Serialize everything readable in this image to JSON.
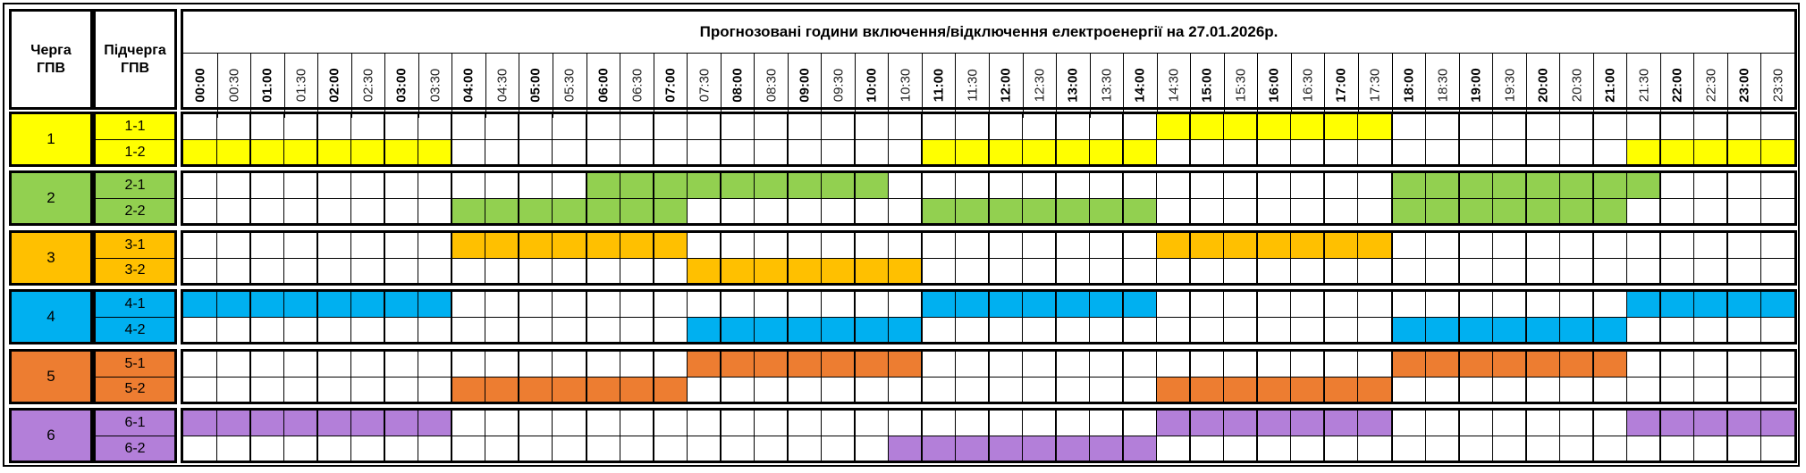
{
  "header": {
    "queue_label": "Черга ГПВ",
    "subqueue_label": "Підчерга ГПВ",
    "title": "Прогнозовані години включення/відключення електроенергії на 27.01.2026р."
  },
  "times": [
    "00:00",
    "00:30",
    "01:00",
    "01:30",
    "02:00",
    "02:30",
    "03:00",
    "03:30",
    "04:00",
    "04:30",
    "05:00",
    "05:30",
    "06:00",
    "06:30",
    "07:00",
    "07:30",
    "08:00",
    "08:30",
    "09:00",
    "09:30",
    "10:00",
    "10:30",
    "11:00",
    "11:30",
    "12:00",
    "12:30",
    "13:00",
    "13:30",
    "14:00",
    "14:30",
    "15:00",
    "15:30",
    "16:00",
    "16:30",
    "17:00",
    "17:30",
    "18:00",
    "18:30",
    "19:00",
    "19:30",
    "20:00",
    "20:30",
    "21:00",
    "21:30",
    "22:00",
    "22:30",
    "23:00",
    "23:30"
  ],
  "queues": [
    {
      "label": "1",
      "color": "#ffff00",
      "subqueues": [
        {
          "label": "1-1",
          "outages": [
            [
              14.5,
              18.0
            ]
          ]
        },
        {
          "label": "1-2",
          "outages": [
            [
              0.0,
              4.0
            ],
            [
              11.0,
              14.5
            ],
            [
              21.5,
              24.0
            ]
          ]
        }
      ]
    },
    {
      "label": "2",
      "color": "#92d050",
      "subqueues": [
        {
          "label": "2-1",
          "outages": [
            [
              6.0,
              10.5
            ],
            [
              18.0,
              22.0
            ]
          ]
        },
        {
          "label": "2-2",
          "outages": [
            [
              4.0,
              7.5
            ],
            [
              11.0,
              14.5
            ],
            [
              18.0,
              21.5
            ]
          ]
        }
      ]
    },
    {
      "label": "3",
      "color": "#ffc000",
      "subqueues": [
        {
          "label": "3-1",
          "outages": [
            [
              4.0,
              7.5
            ],
            [
              14.5,
              18.0
            ]
          ]
        },
        {
          "label": "3-2",
          "outages": [
            [
              7.5,
              11.0
            ]
          ]
        }
      ]
    },
    {
      "label": "4",
      "color": "#00b0f0",
      "subqueues": [
        {
          "label": "4-1",
          "outages": [
            [
              0.0,
              4.0
            ],
            [
              11.0,
              14.5
            ],
            [
              21.5,
              24.0
            ]
          ]
        },
        {
          "label": "4-2",
          "outages": [
            [
              7.5,
              11.0
            ],
            [
              18.0,
              21.5
            ]
          ]
        }
      ]
    },
    {
      "label": "5",
      "color": "#ed7d31",
      "subqueues": [
        {
          "label": "5-1",
          "outages": [
            [
              7.5,
              11.0
            ],
            [
              18.0,
              21.5
            ]
          ]
        },
        {
          "label": "5-2",
          "outages": [
            [
              4.0,
              7.5
            ],
            [
              14.5,
              18.0
            ]
          ]
        }
      ]
    },
    {
      "label": "6",
      "color": "#b37fd9",
      "subqueues": [
        {
          "label": "6-1",
          "outages": [
            [
              0.0,
              4.0
            ],
            [
              14.5,
              18.0
            ],
            [
              21.5,
              24.0
            ]
          ]
        },
        {
          "label": "6-2",
          "outages": [
            [
              10.5,
              14.5
            ]
          ]
        }
      ]
    }
  ]
}
